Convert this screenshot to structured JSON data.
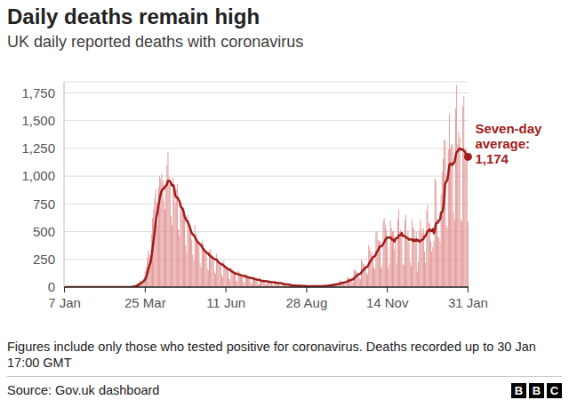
{
  "chart_data": {
    "type": "bar",
    "title": "Daily deaths remain high",
    "subtitle": "UK daily reported deaths with coronavirus",
    "categories": [
      "7 Jan",
      null,
      null,
      null,
      null,
      null,
      null,
      null,
      null,
      null,
      null,
      null,
      null,
      null,
      null,
      null,
      null,
      null,
      null,
      null,
      null,
      null,
      null,
      null,
      null,
      null,
      null,
      null,
      null,
      null,
      null,
      null,
      null,
      null,
      null,
      null,
      null,
      null,
      null,
      null,
      null,
      null,
      null,
      null,
      null,
      null,
      null,
      null,
      null,
      null,
      null,
      null,
      null,
      null,
      null,
      null,
      null,
      null,
      null,
      null,
      null,
      null,
      null,
      null,
      null,
      null,
      null,
      null,
      null,
      null,
      null,
      null,
      null,
      null,
      null,
      null,
      null,
      null,
      "25 Mar",
      null,
      null,
      null,
      null,
      null,
      null,
      null,
      null,
      null,
      null,
      null,
      null,
      null,
      null,
      null,
      null,
      null,
      null,
      null,
      null,
      null,
      null,
      null,
      null,
      null,
      null,
      null,
      null,
      null,
      null,
      null,
      null,
      null,
      null,
      null,
      null,
      null,
      null,
      null,
      null,
      null,
      null,
      null,
      null,
      null,
      null,
      null,
      null,
      null,
      null,
      null,
      null,
      null,
      null,
      null,
      null,
      null,
      null,
      null,
      null,
      null,
      null,
      null,
      null,
      null,
      null,
      null,
      null,
      null,
      null,
      null,
      null,
      null,
      null,
      null,
      null,
      null,
      "11 Jun",
      null,
      null,
      null,
      null,
      null,
      null,
      null,
      null,
      null,
      null,
      null,
      null,
      null,
      null,
      null,
      null,
      null,
      null,
      null,
      null,
      null,
      null,
      null,
      null,
      null,
      null,
      null,
      null,
      null,
      null,
      null,
      null,
      null,
      null,
      null,
      null,
      null,
      null,
      null,
      null,
      null,
      null,
      null,
      null,
      null,
      null,
      null,
      null,
      null,
      null,
      null,
      null,
      null,
      null,
      null,
      null,
      null,
      null,
      null,
      null,
      null,
      null,
      null,
      null,
      null,
      null,
      null,
      null,
      null,
      null,
      null,
      null,
      null,
      null,
      null,
      null,
      null,
      "28 Aug",
      null,
      null,
      null,
      null,
      null,
      null,
      null,
      null,
      null,
      null,
      null,
      null,
      null,
      null,
      null,
      null,
      null,
      null,
      null,
      null,
      null,
      null,
      null,
      null,
      null,
      null,
      null,
      null,
      null,
      null,
      null,
      null,
      null,
      null,
      null,
      null,
      null,
      null,
      null,
      null,
      null,
      null,
      null,
      null,
      null,
      null,
      null,
      null,
      null,
      null,
      null,
      null,
      null,
      null,
      null,
      null,
      null,
      null,
      null,
      null,
      null,
      null,
      null,
      null,
      null,
      null,
      null,
      null,
      null,
      null,
      null,
      null,
      null,
      null,
      null,
      null,
      null,
      "14 Nov",
      null,
      null,
      null,
      null,
      null,
      null,
      null,
      null,
      null,
      null,
      null,
      null,
      null,
      null,
      null,
      null,
      null,
      null,
      null,
      null,
      null,
      null,
      null,
      null,
      null,
      null,
      null,
      null,
      null,
      null,
      null,
      null,
      null,
      null,
      null,
      null,
      null,
      null,
      null,
      null,
      null,
      null,
      null,
      null,
      null,
      null,
      null,
      null,
      null,
      null,
      null,
      null,
      null,
      null,
      null,
      null,
      null,
      null,
      null,
      null,
      null,
      null,
      null,
      null,
      null,
      null,
      null,
      null,
      null,
      null,
      null,
      null,
      null,
      null,
      null,
      null,
      null,
      "31 Jan"
    ],
    "series": [
      {
        "type": "bar",
        "color": "#e49a9a",
        "values": [
          0,
          0,
          0,
          0,
          0,
          0,
          0,
          0,
          0,
          0,
          0,
          0,
          0,
          0,
          0,
          0,
          0,
          0,
          0,
          0,
          0,
          0,
          0,
          0,
          0,
          0,
          0,
          0,
          0,
          0,
          0,
          0,
          0,
          0,
          0,
          0,
          0,
          0,
          0,
          0,
          0,
          0,
          0,
          0,
          0,
          0,
          0,
          0,
          0,
          0,
          0,
          0,
          0,
          0,
          0,
          0,
          0,
          0,
          1,
          0,
          1,
          0,
          1,
          3,
          2,
          4,
          10,
          8,
          14,
          20,
          30,
          38,
          40,
          55,
          60,
          48,
          74,
          90,
          140,
          180,
          260,
          330,
          290,
          240,
          480,
          620,
          700,
          800,
          880,
          760,
          560,
          900,
          1000,
          980,
          1020,
          960,
          780,
          700,
          940,
          1100,
          1220,
          1000,
          940,
          640,
          560,
          990,
          900,
          760,
          880,
          930,
          520,
          460,
          700,
          760,
          690,
          720,
          620,
          380,
          310,
          650,
          600,
          540,
          500,
          430,
          290,
          240,
          560,
          480,
          420,
          400,
          380,
          220,
          180,
          420,
          390,
          350,
          330,
          300,
          170,
          150,
          320,
          340,
          300,
          280,
          240,
          140,
          120,
          300,
          260,
          230,
          220,
          200,
          110,
          90,
          240,
          200,
          180,
          170,
          150,
          80,
          60,
          180,
          160,
          140,
          130,
          120,
          60,
          50,
          150,
          130,
          120,
          110,
          100,
          50,
          40,
          120,
          110,
          100,
          90,
          80,
          40,
          30,
          100,
          90,
          80,
          70,
          60,
          30,
          25,
          80,
          70,
          65,
          60,
          50,
          25,
          20,
          65,
          60,
          55,
          50,
          40,
          20,
          15,
          55,
          50,
          45,
          40,
          35,
          15,
          10,
          40,
          35,
          30,
          25,
          20,
          10,
          8,
          25,
          20,
          18,
          15,
          12,
          6,
          5,
          18,
          16,
          15,
          12,
          10,
          5,
          4,
          14,
          12,
          10,
          10,
          8,
          3,
          3,
          12,
          10,
          12,
          10,
          8,
          2,
          3,
          14,
          12,
          10,
          12,
          10,
          4,
          5,
          20,
          18,
          20,
          18,
          16,
          8,
          10,
          35,
          34,
          32,
          30,
          28,
          18,
          16,
          60,
          55,
          50,
          48,
          45,
          30,
          28,
          90,
          85,
          80,
          75,
          70,
          50,
          45,
          160,
          150,
          140,
          130,
          120,
          80,
          70,
          250,
          230,
          210,
          200,
          180,
          130,
          110,
          380,
          350,
          320,
          300,
          280,
          180,
          160,
          490,
          500,
          420,
          420,
          410,
          170,
          200,
          590,
          620,
          560,
          520,
          460,
          170,
          210,
          600,
          530,
          500,
          510,
          340,
          400,
          210,
          610,
          700,
          500,
          520,
          480,
          210,
          200,
          600,
          650,
          420,
          510,
          400,
          230,
          190,
          610,
          540,
          520,
          420,
          500,
          140,
          230,
          510,
          610,
          530,
          490,
          530,
          320,
          220,
          690,
          740,
          580,
          570,
          410,
          320,
          360,
          410,
          980,
          960,
          610,
          450,
          450,
          410,
          830,
          1040,
          1160,
          1330,
          1320,
          560,
          530,
          1240,
          1560,
          1250,
          1280,
          1290,
          670,
          600,
          1610,
          1820,
          1290,
          1400,
          1350,
          610,
          590,
          1630,
          1720,
          1240,
          1250,
          1200,
          587
        ]
      },
      {
        "type": "line",
        "color": "#a01c1c",
        "values": [
          0,
          0,
          0,
          0,
          0,
          0,
          0,
          0,
          0,
          0,
          0,
          0,
          0,
          0,
          0,
          0,
          0,
          0,
          0,
          0,
          0,
          0,
          0,
          0,
          0,
          0,
          0,
          0,
          0,
          0,
          0,
          0,
          0,
          0,
          0,
          0,
          0,
          0,
          0,
          0,
          0,
          0,
          0,
          0,
          0,
          0,
          0,
          0,
          0,
          0,
          0,
          0,
          0,
          0,
          0,
          0,
          0,
          0,
          0,
          0,
          0,
          0,
          0,
          1,
          1,
          2,
          3,
          4,
          6,
          9,
          13,
          18,
          23,
          29,
          37,
          42,
          49,
          58,
          72,
          92,
          122,
          160,
          195,
          219,
          274,
          343,
          417,
          494,
          573,
          640,
          686,
          746,
          800,
          840,
          871,
          883,
          886,
          906,
          911,
          926,
          960,
          957,
          954,
          934,
          914,
          921,
          893,
          827,
          810,
          809,
          791,
          777,
          736,
          716,
          706,
          683,
          639,
          619,
          597,
          590,
          567,
          546,
          514,
          487,
          474,
          464,
          451,
          434,
          417,
          403,
          396,
          386,
          377,
          357,
          344,
          334,
          324,
          313,
          306,
          301,
          287,
          280,
          273,
          266,
          257,
          253,
          249,
          246,
          234,
          224,
          216,
          210,
          206,
          201,
          193,
          184,
          177,
          170,
          163,
          159,
          154,
          146,
          140,
          134,
          129,
          124,
          121,
          120,
          116,
          111,
          109,
          106,
          103,
          101,
          100,
          96,
          93,
          90,
          87,
          84,
          83,
          81,
          79,
          76,
          73,
          70,
          67,
          66,
          65,
          62,
          59,
          57,
          56,
          54,
          54,
          53,
          51,
          49,
          48,
          46,
          45,
          44,
          44,
          42,
          41,
          39,
          38,
          37,
          36,
          36,
          34,
          31,
          29,
          27,
          25,
          24,
          24,
          22,
          20,
          18,
          17,
          15,
          15,
          14,
          13,
          13,
          12,
          12,
          12,
          12,
          11,
          11,
          10,
          10,
          9,
          9,
          9,
          9,
          8,
          8,
          8,
          8,
          8,
          8,
          8,
          8,
          9,
          8,
          9,
          9,
          9,
          10,
          10,
          11,
          13,
          14,
          14,
          15,
          16,
          18,
          20,
          22,
          24,
          25,
          27,
          28,
          31,
          34,
          37,
          39,
          42,
          43,
          45,
          49,
          54,
          58,
          62,
          65,
          68,
          71,
          81,
          90,
          99,
          106,
          114,
          118,
          121,
          134,
          146,
          156,
          166,
          174,
          181,
          187,
          206,
          223,
          239,
          253,
          267,
          274,
          281,
          297,
          319,
          333,
          350,
          369,
          367,
          373,
          387,
          404,
          424,
          439,
          446,
          446,
          447,
          449,
          436,
          427,
          426,
          409,
          441,
          441,
          443,
          467,
          467,
          469,
          489,
          461,
          460,
          459,
          451,
          440,
          439,
          427,
          430,
          429,
          430,
          414,
          429,
          416,
          430,
          417,
          423,
          409,
          419,
          420,
          430,
          434,
          460,
          459,
          484,
          503,
          510,
          521,
          504,
          504,
          524,
          484,
          519,
          573,
          579,
          584,
          603,
          610,
          670,
          679,
          707,
          810,
          934,
          950,
          967,
          1026,
          1100,
          1113,
          1106,
          1101,
          1117,
          1127,
          1180,
          1217,
          1223,
          1240,
          1249,
          1240,
          1239,
          1241,
          1227,
          1220,
          1199,
          1177,
          1174
        ]
      }
    ],
    "ylim": [
      0,
      1850
    ],
    "yticks": [
      0,
      250,
      500,
      750,
      {
        "value": 1000,
        "label": "1,000"
      },
      {
        "value": 1250,
        "label": "1,250"
      },
      {
        "value": 1500,
        "label": "1,500"
      },
      {
        "value": 1750,
        "label": "1,750"
      }
    ],
    "grid": true,
    "annotations": [
      {
        "text": "Seven-day average:",
        "x": "31 Jan",
        "value": 1174,
        "label": "1,174"
      }
    ]
  },
  "footnote": "Figures include only those who tested positive for coronavirus. Deaths recorded up to 30 Jan 17:00 GMT",
  "source": "Source: Gov.uk dashboard",
  "logo": "BBC"
}
